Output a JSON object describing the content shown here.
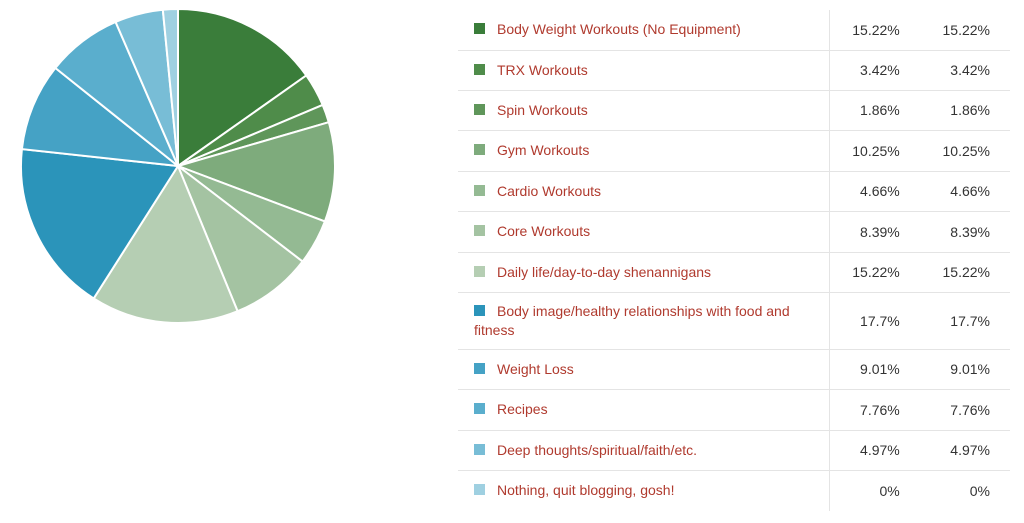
{
  "chart_data": {
    "type": "pie",
    "categories": [
      "Body Weight Workouts (No Equipment)",
      "TRX Workouts",
      "Spin Workouts",
      "Gym Workouts",
      "Cardio Workouts",
      "Core Workouts",
      "Daily life/day-to-day shenannigans",
      "Body image/healthy relationships with food and fitness",
      "Weight Loss",
      "Recipes",
      "Deep thoughts/spiritual/faith/etc.",
      "Nothing, quit blogging, gosh!"
    ],
    "values": [
      15.22,
      3.42,
      1.86,
      10.25,
      4.66,
      8.39,
      15.22,
      17.7,
      9.01,
      7.76,
      4.97,
      0
    ],
    "colors": [
      "#3a7d3a",
      "#4f8c4a",
      "#5f965a",
      "#7eab7c",
      "#94ba93",
      "#a4c3a2",
      "#b5ceb3",
      "#2b94ba",
      "#45a2c5",
      "#5aaecd",
      "#78bdd6",
      "#9fd0e1"
    ],
    "rows": [
      {
        "label": "Body Weight Workouts (No Equipment)",
        "pct1": "15.22%",
        "pct2": "15.22%"
      },
      {
        "label": "TRX Workouts",
        "pct1": "3.42%",
        "pct2": "3.42%"
      },
      {
        "label": "Spin Workouts",
        "pct1": "1.86%",
        "pct2": "1.86%"
      },
      {
        "label": "Gym Workouts",
        "pct1": "10.25%",
        "pct2": "10.25%"
      },
      {
        "label": "Cardio Workouts",
        "pct1": "4.66%",
        "pct2": "4.66%"
      },
      {
        "label": "Core Workouts",
        "pct1": "8.39%",
        "pct2": "8.39%"
      },
      {
        "label": "Daily life/day-to-day shenannigans",
        "pct1": "15.22%",
        "pct2": "15.22%"
      },
      {
        "label": "Body image/healthy relationships with food and fitness",
        "pct1": "17.7%",
        "pct2": "17.7%"
      },
      {
        "label": "Weight Loss",
        "pct1": "9.01%",
        "pct2": "9.01%"
      },
      {
        "label": "Recipes",
        "pct1": "7.76%",
        "pct2": "7.76%"
      },
      {
        "label": "Deep thoughts/spiritual/faith/etc.",
        "pct1": "4.97%",
        "pct2": "4.97%"
      },
      {
        "label": "Nothing, quit blogging, gosh!",
        "pct1": "0%",
        "pct2": "0%"
      }
    ]
  }
}
